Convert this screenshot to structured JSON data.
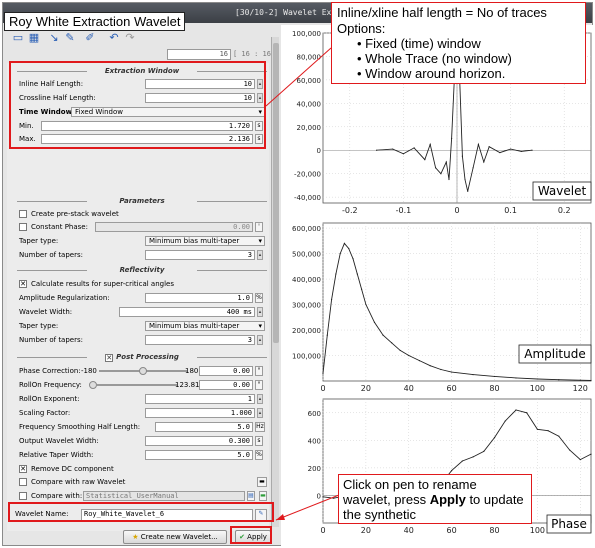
{
  "window": {
    "title": "[30/10-2] Wavelet Extraction",
    "page_number": "16",
    "page_range": "[ 16 : 16]"
  },
  "extraction_window": {
    "heading": "Extraction Window",
    "inline_label": "Inline Half Length:",
    "inline_value": "10",
    "crossline_label": "Crossline Half Length:",
    "crossline_value": "10",
    "time_window_label": "Time Window:",
    "time_window_value": "Fixed Window",
    "min_label": "Min.",
    "min_value": "1.720",
    "max_label": "Max.",
    "max_value": "2.136",
    "unit": "s"
  },
  "parameters": {
    "heading": "Parameters",
    "prestack_label": "Create pre-stack wavelet",
    "constant_phase_label": "Constant Phase:",
    "constant_phase_value": "0.00",
    "taper_label": "Taper type:",
    "taper_value": "Minimum bias multi-taper",
    "num_tapers_label": "Number of tapers:",
    "num_tapers_value": "3"
  },
  "reflectivity": {
    "heading": "Reflectivity",
    "supercritical_label": "Calculate results for super-critical angles",
    "amp_reg_label": "Amplitude Regularization:",
    "amp_reg_value": "1.0",
    "amp_reg_unit": "%",
    "wavelet_width_label": "Wavelet Width:",
    "wavelet_width_value": "400 ms",
    "taper_label": "Taper type:",
    "taper_value": "Minimum bias multi-taper",
    "num_tapers_label": "Number of tapers:",
    "num_tapers_value": "3"
  },
  "post_processing": {
    "heading": "Post Processing",
    "phase_corr_label": "Phase Correction:",
    "phase_min": "-180",
    "phase_max": "180",
    "phase_value": "0.00",
    "phase_unit": "°",
    "rolloff_freq_label": "RollOn Frequency:",
    "rolloff_freq_min": "0",
    "rolloff_freq_max": "123.81",
    "rolloff_freq_value": "0.00",
    "rolloff_freq_unit": "°",
    "rolloff_exp_label": "RollOn Exponent:",
    "rolloff_exp_value": "1",
    "scaling_label": "Scaling Factor:",
    "scaling_value": "1.000",
    "freq_smooth_label": "Frequency Smoothing Half Length:",
    "freq_smooth_value": "5.0",
    "freq_smooth_unit": "Hz",
    "out_width_label": "Output Wavelet Width:",
    "out_width_value": "0.300",
    "out_width_unit": "s",
    "rel_taper_label": "Relative Taper Width:",
    "rel_taper_value": "5.0",
    "rel_taper_unit": "%",
    "remove_dc_label": "Remove DC component"
  },
  "compare": {
    "raw_label": "Compare with raw Wavelet",
    "with_label": "Compare with:",
    "with_value": "Statistical_UserManual"
  },
  "wavelet_name": {
    "label": "Wavelet Name:",
    "value": "Roy_White_Wavelet_6"
  },
  "buttons": {
    "create_new": "Create new Wavelet...",
    "apply": "Apply"
  },
  "annotations": {
    "title_tag": "Roy White Extraction Wavelet",
    "top_callout_line1": "Inline/xline half length = No of traces",
    "top_callout_line2": "Options:",
    "top_callout_bullets": [
      "Fixed (time) window",
      "Whole Trace (no window)",
      "Window around horizon."
    ],
    "bottom_callout_pre": "Click on pen to rename wavelet, press ",
    "bottom_callout_bold": "Apply",
    "bottom_callout_post": " to update the synthetic"
  },
  "chart_data": [
    {
      "type": "line",
      "title": "Wavelet",
      "xlim": [
        -0.25,
        0.25
      ],
      "ylim": [
        -45000,
        100000
      ],
      "xticks": [
        "-0.2",
        "-0.1",
        "0",
        "0.1",
        "0.2"
      ],
      "yticks": [
        "-40,000",
        "-20,000",
        "0",
        "20,000",
        "40,000",
        "60,000",
        "80,000",
        "100,000"
      ],
      "x": [
        -0.15,
        -0.12,
        -0.1,
        -0.08,
        -0.06,
        -0.05,
        -0.04,
        -0.03,
        -0.02,
        -0.015,
        -0.01,
        -0.005,
        0,
        0.005,
        0.01,
        0.015,
        0.02,
        0.03,
        0.04,
        0.05,
        0.06,
        0.08,
        0.1,
        0.12,
        0.14
      ],
      "y": [
        0,
        1000,
        -3000,
        2000,
        -8000,
        5000,
        -15000,
        -20000,
        -10000,
        -25000,
        10000,
        60000,
        100000,
        60000,
        -5000,
        -25000,
        -35000,
        -15000,
        5000,
        -10000,
        3000,
        -2000,
        1000,
        -1000,
        0
      ]
    },
    {
      "type": "line",
      "title": "Amplitude",
      "xlim": [
        0,
        125
      ],
      "ylim": [
        0,
        620000
      ],
      "xticks": [
        "0",
        "20",
        "40",
        "60",
        "80",
        "100",
        "120"
      ],
      "yticks": [
        "100,000",
        "200,000",
        "300,000",
        "400,000",
        "500,000",
        "600,000"
      ],
      "x": [
        0,
        2,
        4,
        6,
        8,
        10,
        12,
        14,
        16,
        18,
        20,
        24,
        28,
        32,
        36,
        40,
        45,
        50,
        55,
        60,
        70,
        80,
        90,
        100,
        110,
        120,
        125
      ],
      "y": [
        30000,
        180000,
        320000,
        420000,
        500000,
        540000,
        520000,
        480000,
        420000,
        360000,
        300000,
        230000,
        180000,
        150000,
        120000,
        100000,
        80000,
        60000,
        45000,
        35000,
        25000,
        18000,
        12000,
        8000,
        5000,
        3000,
        2000
      ]
    },
    {
      "type": "line",
      "title": "Phase",
      "xlim": [
        0,
        125
      ],
      "ylim": [
        -200,
        700
      ],
      "xticks": [
        "0",
        "20",
        "40",
        "60",
        "80",
        "100",
        "120"
      ],
      "yticks": [
        "0",
        "200",
        "400",
        "600"
      ],
      "x": [
        0,
        5,
        10,
        15,
        20,
        25,
        30,
        35,
        40,
        45,
        50,
        55,
        60,
        65,
        70,
        75,
        80,
        85,
        90,
        95,
        100,
        105,
        110,
        115,
        120,
        125
      ],
      "y": [
        -10,
        -20,
        -5,
        -15,
        10,
        -10,
        5,
        -20,
        -10,
        -30,
        20,
        80,
        180,
        250,
        280,
        320,
        420,
        540,
        620,
        600,
        480,
        470,
        430,
        330,
        260,
        300
      ]
    }
  ]
}
